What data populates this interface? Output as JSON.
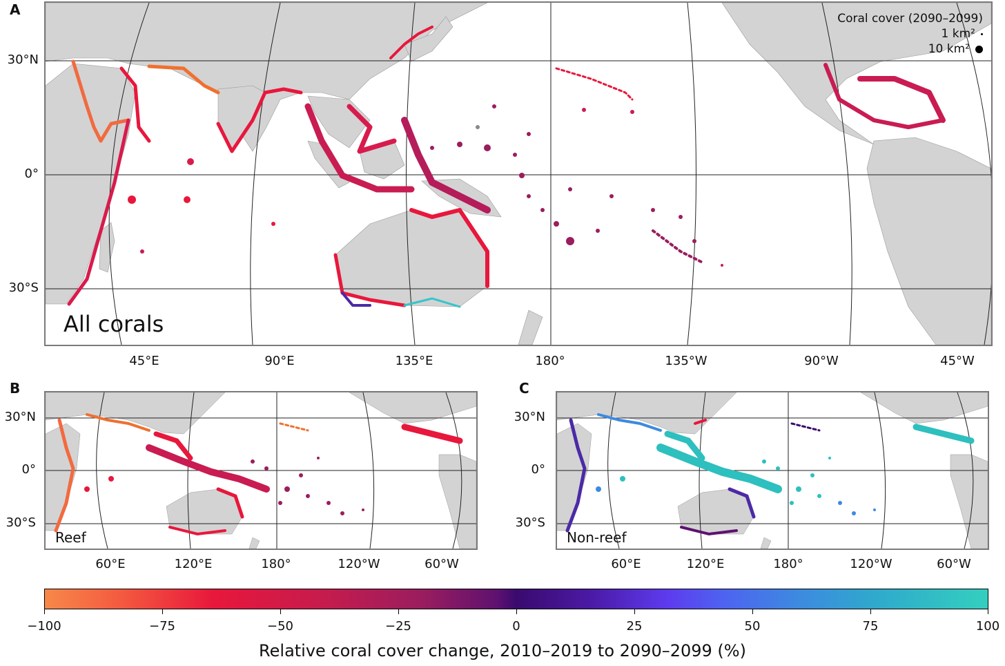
{
  "panels": [
    {
      "letter": "A",
      "title": "All corals",
      "lat_labels": [
        "30°N",
        "0°",
        "30°S"
      ],
      "lon_labels": [
        "45°E",
        "90°E",
        "135°E",
        "180°",
        "135°W",
        "90°W",
        "45°W"
      ]
    },
    {
      "letter": "B",
      "title": "Reef",
      "lat_labels": [
        "30°N",
        "0°",
        "30°S"
      ],
      "lon_labels": [
        "60°E",
        "120°E",
        "180°",
        "120°W",
        "60°W"
      ]
    },
    {
      "letter": "C",
      "title": "Non-reef",
      "lat_labels": [
        "30°N",
        "0°",
        "30°S"
      ],
      "lon_labels": [
        "60°E",
        "120°E",
        "180°",
        "120°W",
        "60°W"
      ]
    }
  ],
  "legend": {
    "title": "Coral cover (2090–2099)",
    "items": [
      {
        "label": "1 km²"
      },
      {
        "label": "10 km²"
      }
    ]
  },
  "colorbar": {
    "ticks": [
      "−100",
      "−75",
      "−50",
      "−25",
      "0",
      "25",
      "50",
      "75",
      "100"
    ],
    "label": "Relative coral cover change, 2010–2019 to 2090–2099 (%)",
    "colors": {
      "min": "#f7884a",
      "mid": "#3a0a6e",
      "max": "#34cfbf"
    }
  },
  "colors": {
    "land": "#d3d3d3",
    "reef_main": "#e11d48",
    "reef_deep": "#9a1d5e",
    "nonreef_main": "#2ebfbf",
    "frame": "#7a7a7a"
  }
}
